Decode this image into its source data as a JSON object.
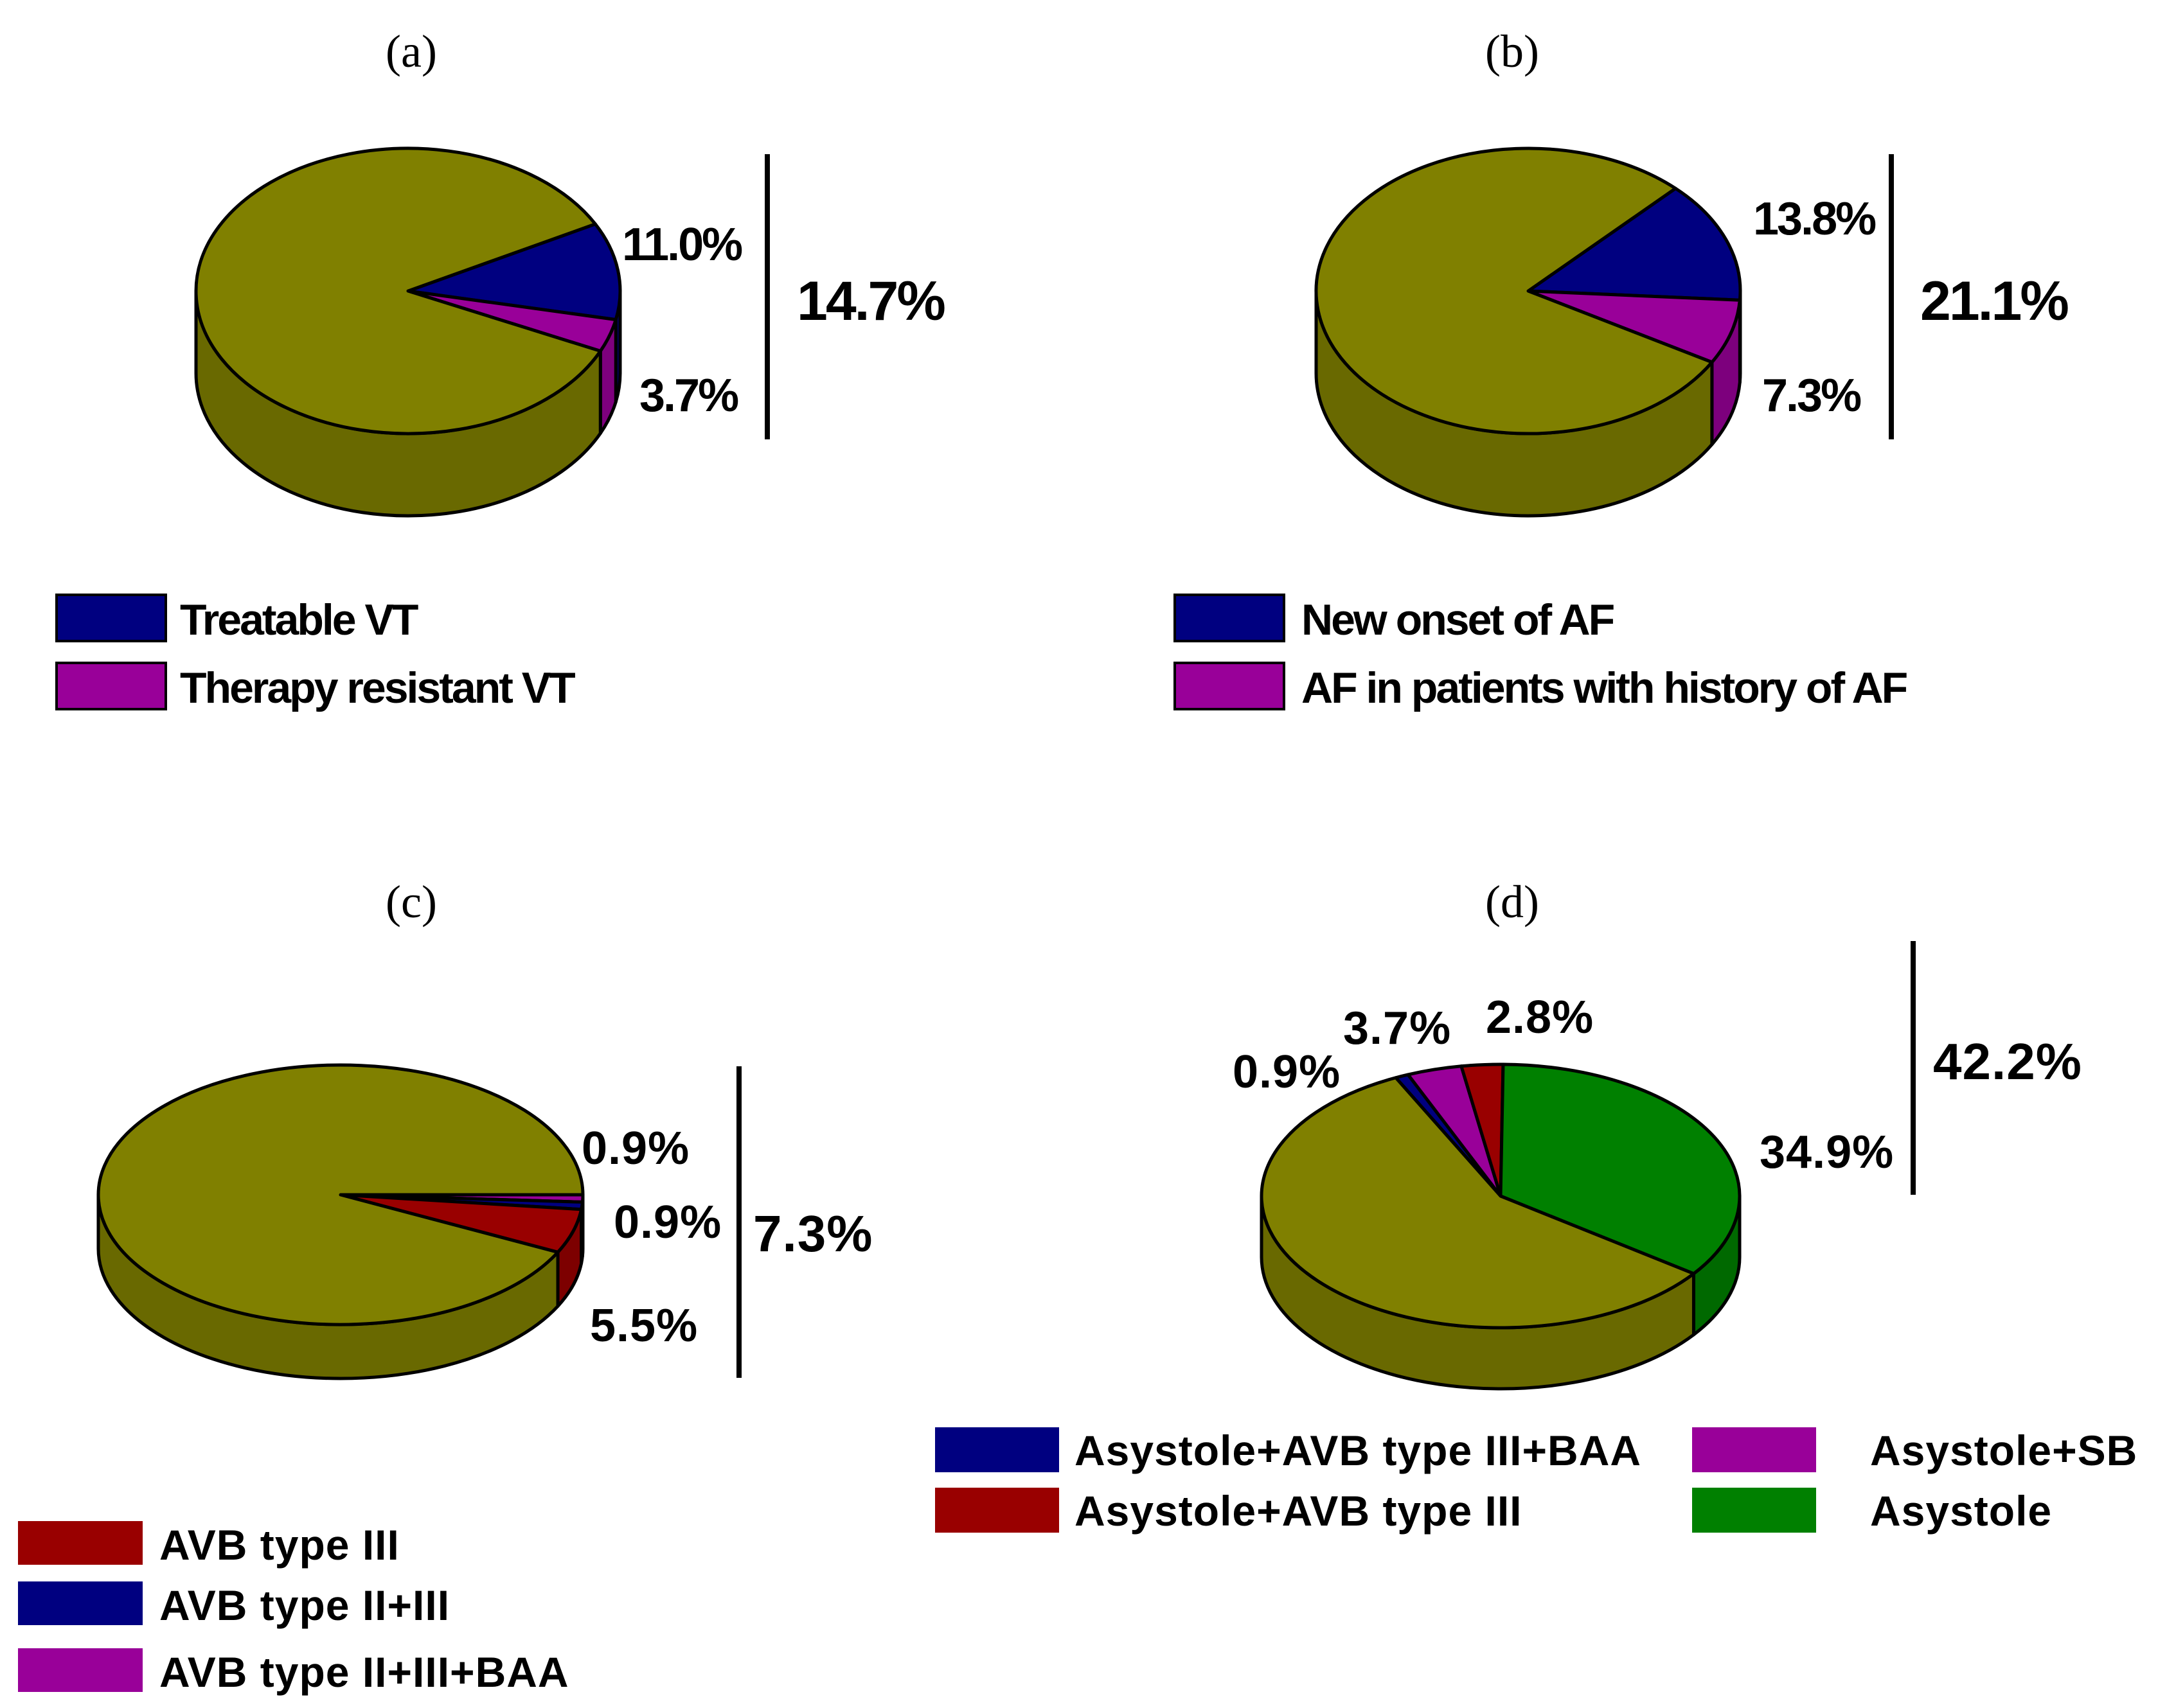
{
  "colors": {
    "olive": "#808000",
    "navy": "#000080",
    "purple": "#990099",
    "darkred": "#990000",
    "green": "#008000"
  },
  "chart_data": [
    {
      "panel": "(a)",
      "type": "pie",
      "slices": [
        {
          "name": "Treatable VT",
          "value": 11.0,
          "label": "11.0%",
          "color": "#000080"
        },
        {
          "name": "Therapy resistant VT",
          "value": 3.7,
          "label": "3.7%",
          "color": "#990099"
        },
        {
          "name": "remainder",
          "value": 85.3,
          "color": "#808000"
        }
      ],
      "total_label": "14.7%",
      "legend": [
        "Treatable VT",
        "Therapy resistant VT"
      ]
    },
    {
      "panel": "(b)",
      "type": "pie",
      "slices": [
        {
          "name": "New onset of AF",
          "value": 13.8,
          "label": "13.8%",
          "color": "#000080"
        },
        {
          "name": "AF in patients with history of AF",
          "value": 7.3,
          "label": "7.3%",
          "color": "#990099"
        },
        {
          "name": "remainder",
          "value": 78.9,
          "color": "#808000"
        }
      ],
      "total_label": "21.1%",
      "legend": [
        "New onset of AF",
        "AF in patients with history of AF"
      ]
    },
    {
      "panel": "(c)",
      "type": "pie",
      "slices": [
        {
          "name": "AVB type II+III+BAA",
          "value": 0.9,
          "label": "0.9%",
          "color": "#990099"
        },
        {
          "name": "AVB type II+III",
          "value": 0.9,
          "label": "0.9%",
          "color": "#000080"
        },
        {
          "name": "AVB type III",
          "value": 5.5,
          "label": "5.5%",
          "color": "#990000"
        },
        {
          "name": "remainder",
          "value": 92.7,
          "color": "#808000"
        }
      ],
      "total_label": "7.3%",
      "legend": [
        "AVB type III",
        "AVB type II+III",
        "AVB type II+III+BAA"
      ]
    },
    {
      "panel": "(d)",
      "type": "pie",
      "slices": [
        {
          "name": "Asystole+AVB type III+BAA",
          "value": 0.9,
          "label": "0.9%",
          "color": "#000080"
        },
        {
          "name": "Asystole+SB",
          "value": 3.7,
          "label": "3.7%",
          "color": "#990099"
        },
        {
          "name": "Asystole+AVB type III",
          "value": 2.8,
          "label": "2.8%",
          "color": "#990000"
        },
        {
          "name": "Asystole",
          "value": 34.9,
          "label": "34.9%",
          "color": "#008000"
        },
        {
          "name": "remainder",
          "value": 57.8,
          "color": "#808000"
        }
      ],
      "total_label": "42.2%",
      "legend": [
        "Asystole+AVB type III+BAA",
        "Asystole+SB",
        "Asystole+AVB type III",
        "Asystole"
      ]
    }
  ]
}
